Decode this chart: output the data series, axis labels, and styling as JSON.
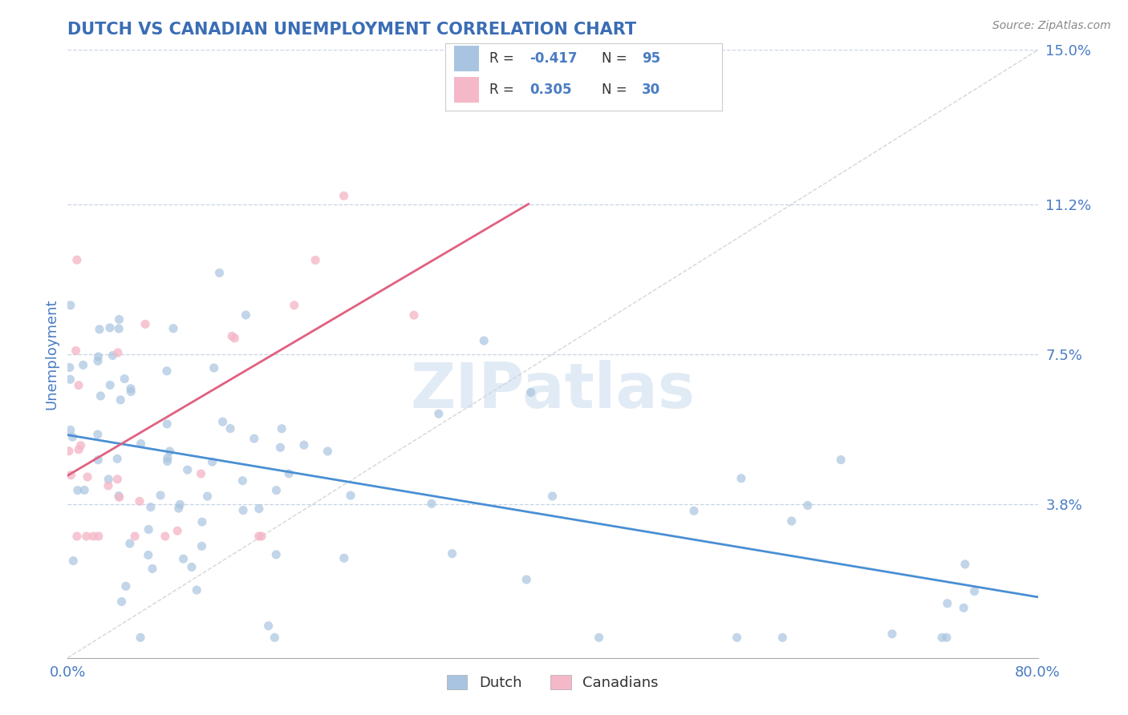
{
  "title": "DUTCH VS CANADIAN UNEMPLOYMENT CORRELATION CHART",
  "source_text": "Source: ZipAtlas.com",
  "xlabel": "",
  "ylabel": "Unemployment",
  "watermark": "ZIPatlas",
  "xlim": [
    0.0,
    0.8
  ],
  "ylim": [
    0.0,
    0.15
  ],
  "xtick_labels": [
    "0.0%",
    "80.0%"
  ],
  "ytick_values": [
    0.038,
    0.075,
    0.112,
    0.15
  ],
  "ytick_labels": [
    "3.8%",
    "7.5%",
    "11.2%",
    "15.0%"
  ],
  "dutch_color": "#a8c4e0",
  "canadian_color": "#f4b8c8",
  "dutch_line_color": "#4a8fd4",
  "canadian_line_color": "#e06080",
  "ref_line_color": "#c8c8c8",
  "grid_color": "#c8d4e4",
  "legend_label1": "Dutch",
  "legend_label2": "Canadians",
  "title_color": "#3a6db5",
  "axis_label_color": "#4a7cc4",
  "tick_label_color": "#4a7cc4",
  "value_color": "#4a7cc4",
  "dutch_R": -0.417,
  "dutch_N": 95,
  "canadian_R": 0.305,
  "canadian_N": 30,
  "dutch_trend_x": [
    0.0,
    0.8
  ],
  "dutch_trend_y": [
    0.055,
    0.015
  ],
  "canadian_trend_x": [
    0.0,
    0.38
  ],
  "canadian_trend_y": [
    0.045,
    0.112
  ]
}
